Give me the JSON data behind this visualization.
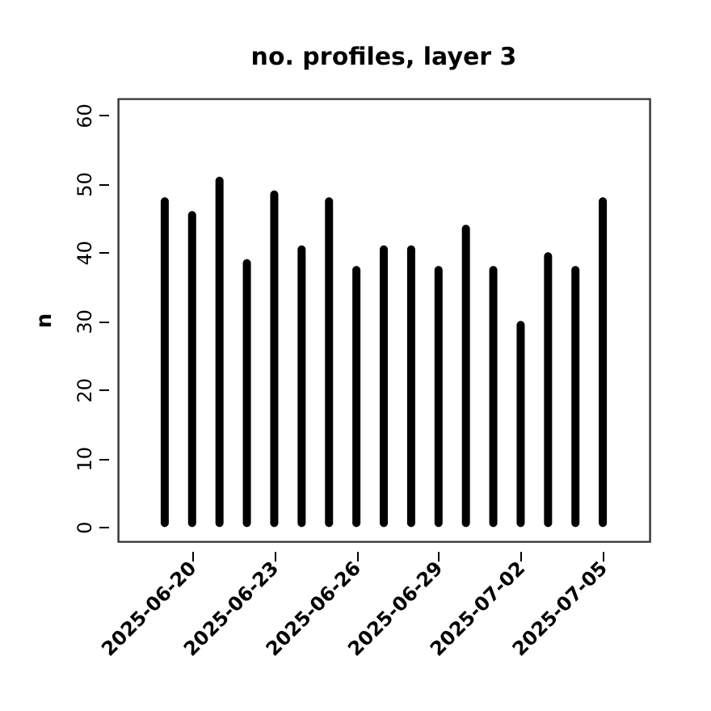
{
  "chart_data": {
    "type": "bar",
    "title": "no. profiles, layer 3",
    "ylabel": "n",
    "x": [
      "2025-06-19",
      "2025-06-20",
      "2025-06-21",
      "2025-06-22",
      "2025-06-23",
      "2025-06-24",
      "2025-06-25",
      "2025-06-26",
      "2025-06-27",
      "2025-06-28",
      "2025-06-29",
      "2025-06-30",
      "2025-07-01",
      "2025-07-02",
      "2025-07-03",
      "2025-07-04",
      "2025-07-05"
    ],
    "values": [
      48,
      46,
      51,
      39,
      49,
      41,
      48,
      38,
      41,
      41,
      38,
      44,
      38,
      30,
      40,
      38,
      48
    ],
    "color": "#000000",
    "xlim": [
      "2025-06-17T07:00",
      "2025-07-06T17:00"
    ],
    "xticks": [
      "2025-06-20",
      "2025-06-23",
      "2025-06-26",
      "2025-06-29",
      "2025-07-02",
      "2025-07-05"
    ],
    "ylim": [
      -2.1,
      62.4
    ],
    "yticks": [
      0,
      10,
      20,
      30,
      40,
      50,
      60
    ],
    "grid": false
  }
}
